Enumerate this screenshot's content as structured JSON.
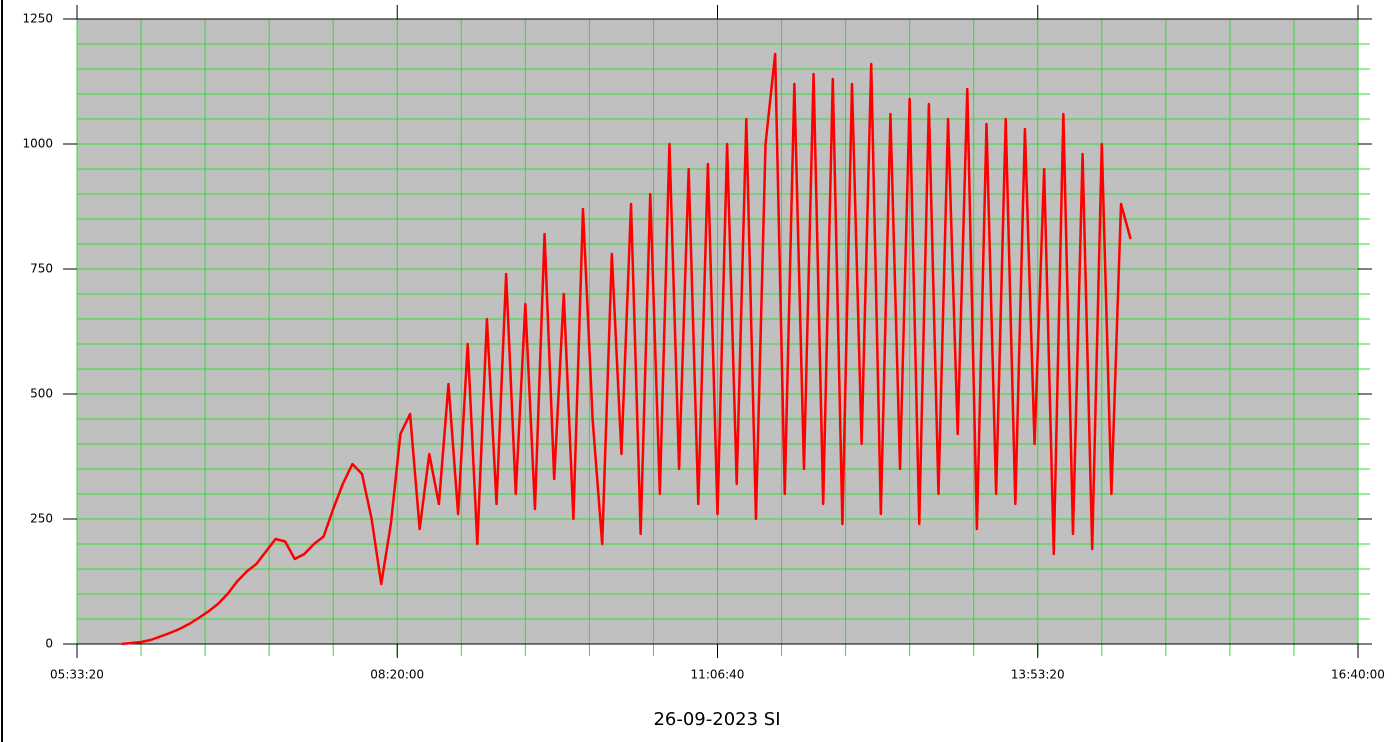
{
  "chart_data": {
    "type": "line",
    "title": "26-09-2023 SI",
    "x": [
      21400,
      21700,
      22000,
      22300,
      22600,
      22900,
      23200,
      23500,
      23800,
      24100,
      24400,
      24700,
      25000,
      25300,
      25600,
      25900,
      26200,
      26500,
      26800,
      27100,
      27400,
      27700,
      28000,
      28300,
      28600,
      28900,
      29200,
      29500,
      29800,
      30100,
      30400,
      30700,
      31000,
      31300,
      31600,
      31900,
      32200,
      32500,
      32800,
      33100,
      33400,
      33700,
      34000,
      34300,
      34600,
      34900,
      35200,
      35500,
      35800,
      36100,
      36400,
      36700,
      37000,
      37300,
      37600,
      37900,
      38200,
      38500,
      38800,
      39100,
      39400,
      39700,
      40000,
      40300,
      40600,
      40900,
      41200,
      41500,
      41800,
      42100,
      42400,
      42700,
      43000,
      43300,
      43600,
      43900,
      44200,
      44500,
      44800,
      45100,
      45400,
      45700,
      46000,
      46300,
      46600,
      46900,
      47200,
      47500,
      47800,
      48100,
      48400,
      48700,
      49000,
      49300,
      49600,
      49900,
      50200,
      50500,
      50800,
      51100,
      51400,
      51700,
      52000,
      52300,
      52600,
      52900
    ],
    "series": [
      {
        "color": "#ff0000",
        "values": [
          0,
          2,
          4,
          8,
          15,
          22,
          30,
          40,
          52,
          65,
          80,
          100,
          125,
          145,
          160,
          185,
          210,
          205,
          170,
          180,
          200,
          215,
          270,
          320,
          360,
          340,
          250,
          120,
          240,
          420,
          460,
          230,
          380,
          280,
          520,
          260,
          600,
          200,
          650,
          280,
          740,
          300,
          680,
          270,
          820,
          330,
          700,
          250,
          870,
          450,
          200,
          780,
          380,
          880,
          220,
          900,
          300,
          1000,
          350,
          950,
          280,
          960,
          260,
          1000,
          320,
          1050,
          250,
          1000,
          1180,
          300,
          1120,
          350,
          1140,
          280,
          1130,
          240,
          1120,
          400,
          1160,
          260,
          1060,
          350,
          1090,
          240,
          1080,
          300,
          1050,
          420,
          1110,
          230,
          1040,
          300,
          1050,
          280,
          1030,
          400,
          950,
          180,
          1060,
          220,
          980,
          190,
          1000,
          300,
          880,
          810
        ]
      }
    ],
    "xlim": [
      20000,
      60000
    ],
    "xticks": [
      {
        "value": 20000,
        "label": "05:33:20"
      },
      {
        "value": 30000,
        "label": "08:20:00"
      },
      {
        "value": 40000,
        "label": "11:06:40"
      },
      {
        "value": 50000,
        "label": "13:53:20"
      },
      {
        "value": 60000,
        "label": "16:40:00"
      }
    ],
    "ylim": [
      0,
      1250
    ],
    "yticks": [
      0,
      250,
      500,
      750,
      1000,
      1250
    ],
    "xgrid": [
      20000,
      22000,
      24000,
      26000,
      28000,
      30000,
      32000,
      34000,
      36000,
      38000,
      40000,
      42000,
      44000,
      46000,
      48000,
      50000,
      52000,
      54000,
      56000,
      58000,
      60000
    ],
    "ygrid": [
      0,
      50,
      100,
      150,
      200,
      250,
      300,
      350,
      400,
      450,
      500,
      550,
      600,
      650,
      700,
      750,
      800,
      850,
      900,
      950,
      1000,
      1050,
      1100,
      1150,
      1200,
      1250
    ],
    "grid_color": "#33dd33",
    "background": "#c0c0c0"
  }
}
